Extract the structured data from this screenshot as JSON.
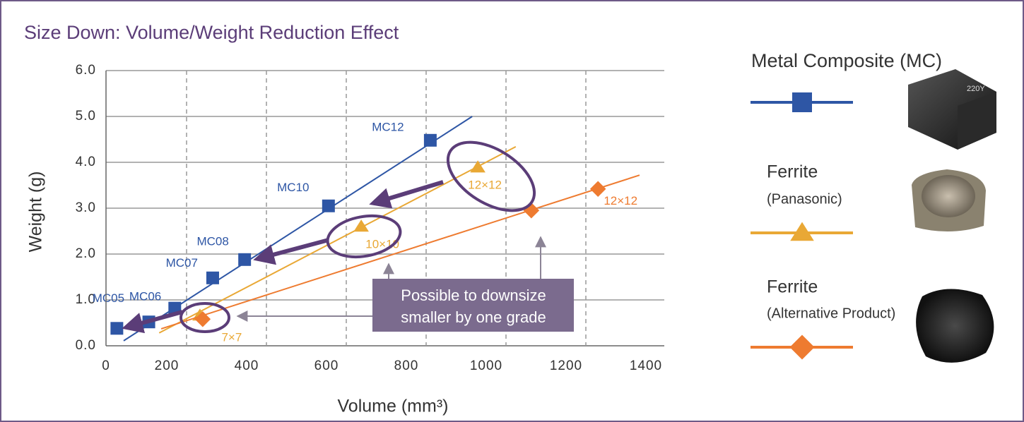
{
  "chart_data": {
    "type": "scatter",
    "title": "Size Down: Volume/Weight Reduction Effect",
    "x_label": "Volume (mm³)",
    "y_label": "Weight (g)",
    "xlim": [
      0,
      1400
    ],
    "ylim": [
      0,
      6
    ],
    "xticks": [
      0,
      200,
      400,
      600,
      800,
      1000,
      1200,
      1400
    ],
    "yticks": [
      {
        "value": 0,
        "label": "0.0"
      },
      {
        "value": 1,
        "label": "1.0"
      },
      {
        "value": 2,
        "label": "2.0"
      },
      {
        "value": 3,
        "label": "3.0"
      },
      {
        "value": 4,
        "label": "4.0"
      },
      {
        "value": 5,
        "label": "5.0"
      },
      {
        "value": 6,
        "label": "6.0"
      }
    ],
    "grid": true,
    "callout": [
      "Possible to downsize",
      "smaller by one grade"
    ],
    "series": [
      {
        "name": "Metal Composite (MC)",
        "color": "#2e56a5",
        "marker": "square",
        "x": [
          75,
          155,
          220,
          315,
          395,
          605,
          860
        ],
        "values": [
          0.38,
          0.52,
          0.82,
          1.48,
          1.88,
          3.05,
          4.48
        ],
        "labels": [
          "MC05",
          "MC06",
          "MC07",
          null,
          "MC08",
          "MC10",
          "MC12"
        ],
        "trendline": {
          "x": [
            92,
            965
          ],
          "y": [
            0.11,
            5.0
          ]
        }
      },
      {
        "name": "Ferrite",
        "subname": "(Panasonic)",
        "color": "#e9a835",
        "marker": "triangle",
        "x": [
          283,
          687,
          979
        ],
        "values": [
          0.66,
          2.6,
          3.89
        ],
        "labels": [
          "7×7",
          "10×10",
          "12×12"
        ],
        "trendline": {
          "x": [
            181,
            1074
          ],
          "y": [
            0.28,
            4.34
          ]
        }
      },
      {
        "name": "Ferrite",
        "subname": "(Alternative Product)",
        "color": "#ee7b30",
        "marker": "diamond",
        "x": [
          290,
          1113,
          1280
        ],
        "values": [
          0.58,
          2.95,
          3.42
        ],
        "labels": [
          null,
          null,
          "12×12"
        ],
        "trendline": {
          "x": [
            186,
            1384
          ],
          "y": [
            0.37,
            3.72
          ]
        }
      }
    ]
  }
}
